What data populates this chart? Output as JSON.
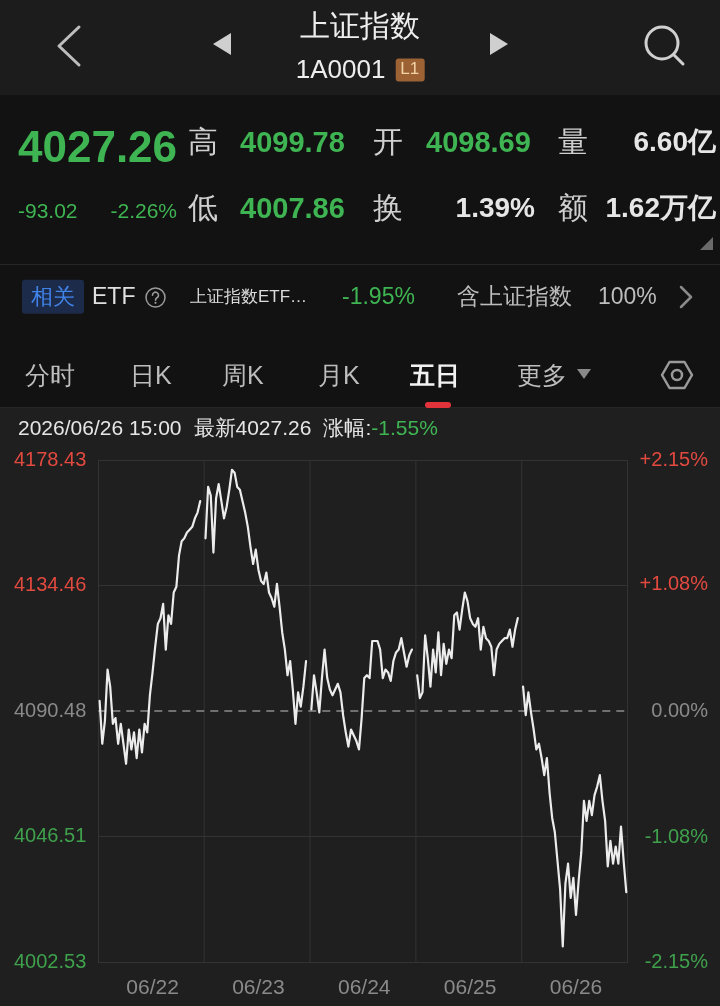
{
  "chart_data": {
    "type": "line",
    "title": "上证指数",
    "subtitle": "1A0001",
    "annotations": [
      "L1",
      "4027.26",
      "高",
      "4099.78",
      "开",
      "4098.69",
      "量",
      "6.60亿",
      "-93.02",
      "-2.26%",
      "低",
      "4007.86",
      "换",
      "1.39%",
      "额",
      "1.62万亿",
      "相关",
      "ETF",
      "上证指数ETF…",
      "-1.95%",
      "含上证指数",
      "100%",
      "分时",
      "日K",
      "周K",
      "月K",
      "五日",
      "更多",
      "2026/06/26 15:00",
      "最新4027.26",
      "涨幅:",
      "-1.55%"
    ],
    "categories": [
      null,
      null,
      null,
      null,
      null,
      null,
      null,
      null,
      null,
      null,
      null,
      null,
      null,
      null,
      null,
      null,
      null,
      null,
      null,
      null,
      "06/22",
      null,
      null,
      null,
      null,
      null,
      null,
      null,
      null,
      null,
      null,
      null,
      null,
      null,
      null,
      null,
      null,
      null,
      null,
      null,
      null,
      null,
      null,
      null,
      null,
      null,
      null,
      null,
      null,
      null,
      null,
      null,
      null,
      null,
      null,
      null,
      null,
      null,
      null,
      null,
      "06/23",
      null,
      null,
      null,
      null,
      null,
      null,
      null,
      null,
      null,
      null,
      null,
      null,
      null,
      null,
      null,
      null,
      null,
      null,
      null,
      null,
      null,
      null,
      null,
      null,
      null,
      null,
      null,
      null,
      null,
      null,
      null,
      null,
      null,
      null,
      null,
      null,
      null,
      null,
      null,
      "06/24",
      null,
      null,
      null,
      null,
      null,
      null,
      null,
      null,
      null,
      null,
      null,
      null,
      null,
      null,
      null,
      null,
      null,
      null,
      null,
      null,
      null,
      null,
      null,
      null,
      null,
      null,
      null,
      null,
      null,
      null,
      null,
      null,
      null,
      null,
      null,
      null,
      null,
      null,
      null,
      "06/25",
      null,
      null,
      null,
      null,
      null,
      null,
      null,
      null,
      null,
      null,
      null,
      null,
      null,
      null,
      null,
      null,
      null,
      null,
      null,
      null,
      null,
      null,
      null,
      null,
      null,
      null,
      null,
      null,
      null,
      null,
      null,
      null,
      null,
      null,
      null,
      null,
      null,
      null,
      null,
      "06/26",
      null,
      null,
      null,
      null,
      null,
      null,
      null,
      null,
      null,
      null,
      null,
      null,
      null,
      null,
      null,
      null,
      null,
      null,
      null
    ],
    "values": [
      4094,
      4079,
      4087,
      4105,
      4099,
      4086,
      4088,
      4079,
      4086,
      4079,
      4072,
      4084,
      4077,
      4083,
      4074,
      4084,
      4076,
      4086,
      4083,
      4096,
      4104,
      4113,
      4121,
      4123,
      4128,
      4112,
      4124,
      4121,
      4132,
      4134,
      4145,
      4150,
      4151,
      4153,
      4154,
      4155,
      4158,
      4160,
      4164,
      null,
      4151,
      4169,
      4166,
      4146,
      4165,
      4170,
      4164,
      4158,
      4162,
      4168,
      4175,
      4174,
      4169,
      4168,
      4164,
      4160,
      4155,
      4148,
      4142,
      4147,
      4140,
      4136,
      4135,
      4139,
      4132,
      4130,
      4127,
      4135,
      4127,
      4118,
      4112,
      4103,
      4108,
      4098,
      4086,
      4097,
      4092,
      4099,
      4108,
      null,
      4091,
      4103,
      4097,
      4090,
      4102,
      4112,
      4102,
      4098,
      4096,
      4098,
      4100,
      4097,
      4089,
      4083,
      4078,
      4084,
      4082,
      4080,
      4077,
      4088,
      4102,
      4103,
      4102,
      4115,
      4115,
      4115,
      4112,
      4102,
      4105,
      4104,
      4101,
      4108,
      4111,
      4112,
      4116,
      4111,
      4106,
      4110,
      4112,
      null,
      4103,
      4095,
      4097,
      4117,
      4109,
      4099,
      4112,
      4104,
      4118,
      4103,
      4114,
      4107,
      4112,
      4109,
      4124,
      4125,
      4119,
      4126,
      4132,
      4129,
      4123,
      4121,
      4120,
      4123,
      4112,
      4120,
      4116,
      4115,
      4113,
      4103,
      4112,
      4114,
      4115,
      4116,
      4116,
      4119,
      4113,
      4119,
      4123,
      null,
      4099,
      4089,
      4097,
      4090,
      4084,
      4077,
      4079,
      4074,
      4068,
      4074,
      4062,
      4053,
      4048,
      4038,
      4028,
      4008,
      4030,
      4037,
      4025,
      4032,
      4019,
      4031,
      4041,
      4059,
      4052,
      4059,
      4054,
      4061,
      4064,
      4068,
      4059,
      4052,
      4036,
      4045,
      4037,
      4043,
      4037,
      4050,
      4038,
      4027
    ],
    "color": "#ececec",
    "marker": "none",
    "ylim": [
      4002.53,
      4178.43
    ],
    "yticks": [
      4002.53,
      4046.51,
      4090.48,
      4134.46,
      4178.43
    ],
    "y2lim": [
      -2.15,
      2.15
    ],
    "y2ticks": [
      {
        "value": -2.15,
        "label": "-2.15%"
      },
      {
        "value": -1.08,
        "label": "-1.08%"
      },
      {
        "value": 0,
        "label": "0.00%"
      },
      {
        "value": 1.08,
        "label": "+1.08%"
      },
      {
        "value": 2.15,
        "label": "+2.15%"
      }
    ],
    "ref_lines": [
      {
        "axis": "y",
        "value": 4090.48,
        "color": "#8c8c8c",
        "line_style": "dashed"
      }
    ],
    "grid": true
  }
}
